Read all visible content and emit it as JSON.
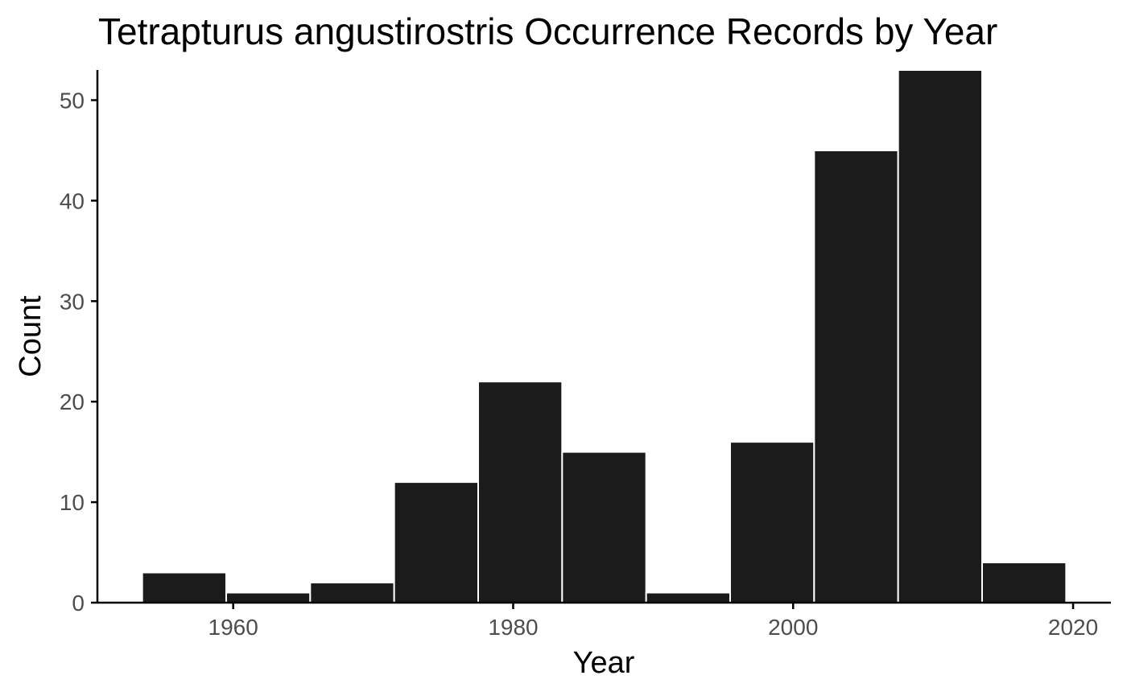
{
  "chart_data": {
    "type": "bar",
    "title": "Tetrapturus angustirostris Occurrence Records by Year",
    "xlabel": "Year",
    "ylabel": "Count",
    "bin_width": 6,
    "bins": [
      {
        "x_start": 1953.5,
        "x_end": 1959.5,
        "count": 3
      },
      {
        "x_start": 1959.5,
        "x_end": 1965.5,
        "count": 1
      },
      {
        "x_start": 1965.5,
        "x_end": 1971.5,
        "count": 2
      },
      {
        "x_start": 1971.5,
        "x_end": 1977.5,
        "count": 12
      },
      {
        "x_start": 1977.5,
        "x_end": 1983.5,
        "count": 22
      },
      {
        "x_start": 1983.5,
        "x_end": 1989.5,
        "count": 15
      },
      {
        "x_start": 1989.5,
        "x_end": 1995.5,
        "count": 1
      },
      {
        "x_start": 1995.5,
        "x_end": 2001.5,
        "count": 16
      },
      {
        "x_start": 2001.5,
        "x_end": 2007.5,
        "count": 45
      },
      {
        "x_start": 2007.5,
        "x_end": 2013.5,
        "count": 53
      },
      {
        "x_start": 2013.5,
        "x_end": 2019.5,
        "count": 4
      }
    ],
    "xlim": [
      1950.3,
      2022.7
    ],
    "ylim": [
      0,
      53
    ],
    "x_ticks": [
      1960,
      1980,
      2000,
      2020
    ],
    "y_ticks": [
      0,
      10,
      20,
      30,
      40,
      50
    ],
    "x_tick_labels": [
      "1960",
      "1980",
      "2000",
      "2020"
    ],
    "y_tick_labels": [
      "0",
      "10",
      "20",
      "30",
      "40",
      "50"
    ],
    "grid": false,
    "legend": "none",
    "bar_color": "#1b1b1b",
    "bar_outline_color": "#ffffff",
    "axis_color": "#000000",
    "tick_label_color": "#4d4d4d"
  }
}
